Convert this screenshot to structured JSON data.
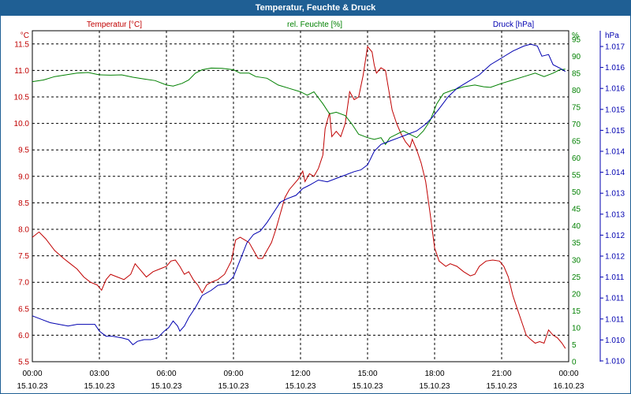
{
  "window": {
    "title": "Temperatur, Feuchte & Druck"
  },
  "chart_data": {
    "type": "line",
    "title": "Temperatur, Feuchte & Druck",
    "grid": true,
    "x_ticks": [
      {
        "time": "00:00",
        "date": "15.10.23"
      },
      {
        "time": "03:00",
        "date": "15.10.23"
      },
      {
        "time": "06:00",
        "date": "15.10.23"
      },
      {
        "time": "09:00",
        "date": "15.10.23"
      },
      {
        "time": "12:00",
        "date": "15.10.23"
      },
      {
        "time": "15:00",
        "date": "15.10.23"
      },
      {
        "time": "18:00",
        "date": "15.10.23"
      },
      {
        "time": "21:00",
        "date": "15.10.23"
      },
      {
        "time": "00:00",
        "date": "16.10.23"
      }
    ],
    "axes": {
      "temperature": {
        "label": "Temperatur [°C]",
        "unit": "°C",
        "range": [
          5.5,
          11.75
        ],
        "ticks": [
          "5.5",
          "6.0",
          "6.5",
          "7.0",
          "7.5",
          "8.0",
          "8.5",
          "9.0",
          "9.5",
          "10.0",
          "10.5",
          "11.0",
          "11.5"
        ],
        "color": "#c00000"
      },
      "humidity": {
        "label": "rel. Feuchte [%]",
        "unit": "%",
        "range": [
          0,
          97.5
        ],
        "ticks": [
          "0",
          "5",
          "10",
          "15",
          "20",
          "25",
          "30",
          "35",
          "40",
          "45",
          "50",
          "55",
          "60",
          "65",
          "70",
          "75",
          "80",
          "85",
          "90",
          "95"
        ],
        "color": "#008000"
      },
      "pressure": {
        "label": "Druck [hPa]",
        "unit": "hPa",
        "tick_labels": [
          "1.010",
          "1.010",
          "1.011",
          "1.011",
          "1.011",
          "1.012",
          "1.012",
          "1.013",
          "1.013",
          "1.014",
          "1.014",
          "1.015",
          "1.015",
          "1.016",
          "1.016",
          "1.017"
        ],
        "color": "#0000b0"
      }
    },
    "series": [
      {
        "name": "Temperatur [°C]",
        "axis": "temperature",
        "color": "#c00000",
        "points": [
          [
            0.0,
            7.85
          ],
          [
            0.3,
            7.95
          ],
          [
            0.6,
            7.82
          ],
          [
            1.0,
            7.6
          ],
          [
            1.4,
            7.45
          ],
          [
            1.7,
            7.35
          ],
          [
            2.0,
            7.25
          ],
          [
            2.3,
            7.1
          ],
          [
            2.6,
            7.0
          ],
          [
            2.9,
            6.95
          ],
          [
            3.1,
            6.85
          ],
          [
            3.3,
            7.05
          ],
          [
            3.5,
            7.15
          ],
          [
            3.8,
            7.1
          ],
          [
            4.1,
            7.05
          ],
          [
            4.4,
            7.15
          ],
          [
            4.6,
            7.35
          ],
          [
            4.8,
            7.25
          ],
          [
            5.1,
            7.1
          ],
          [
            5.4,
            7.2
          ],
          [
            5.7,
            7.25
          ],
          [
            6.0,
            7.3
          ],
          [
            6.2,
            7.4
          ],
          [
            6.4,
            7.42
          ],
          [
            6.6,
            7.3
          ],
          [
            6.8,
            7.15
          ],
          [
            7.0,
            7.2
          ],
          [
            7.2,
            7.05
          ],
          [
            7.4,
            6.95
          ],
          [
            7.6,
            6.8
          ],
          [
            7.8,
            6.95
          ],
          [
            8.0,
            7.0
          ],
          [
            8.3,
            7.05
          ],
          [
            8.6,
            7.15
          ],
          [
            8.9,
            7.4
          ],
          [
            9.1,
            7.8
          ],
          [
            9.3,
            7.85
          ],
          [
            9.5,
            7.8
          ],
          [
            9.7,
            7.75
          ],
          [
            9.9,
            7.6
          ],
          [
            10.1,
            7.45
          ],
          [
            10.3,
            7.45
          ],
          [
            10.5,
            7.6
          ],
          [
            10.7,
            7.75
          ],
          [
            10.9,
            8.0
          ],
          [
            11.1,
            8.3
          ],
          [
            11.3,
            8.6
          ],
          [
            11.5,
            8.75
          ],
          [
            11.7,
            8.85
          ],
          [
            11.9,
            8.95
          ],
          [
            12.1,
            9.1
          ],
          [
            12.2,
            8.9
          ],
          [
            12.4,
            9.05
          ],
          [
            12.6,
            9.0
          ],
          [
            12.8,
            9.15
          ],
          [
            13.0,
            9.4
          ],
          [
            13.1,
            9.9
          ],
          [
            13.3,
            10.2
          ],
          [
            13.4,
            9.75
          ],
          [
            13.6,
            9.85
          ],
          [
            13.8,
            9.75
          ],
          [
            14.0,
            10.0
          ],
          [
            14.2,
            10.6
          ],
          [
            14.4,
            10.45
          ],
          [
            14.6,
            10.5
          ],
          [
            14.8,
            10.9
          ],
          [
            15.0,
            11.45
          ],
          [
            15.2,
            11.35
          ],
          [
            15.3,
            11.1
          ],
          [
            15.4,
            10.95
          ],
          [
            15.6,
            11.05
          ],
          [
            15.8,
            11.0
          ],
          [
            15.9,
            10.75
          ],
          [
            16.1,
            10.25
          ],
          [
            16.3,
            10.0
          ],
          [
            16.5,
            9.8
          ],
          [
            16.7,
            9.65
          ],
          [
            16.9,
            9.55
          ],
          [
            17.0,
            9.7
          ],
          [
            17.2,
            9.5
          ],
          [
            17.4,
            9.25
          ],
          [
            17.6,
            8.9
          ],
          [
            17.8,
            8.3
          ],
          [
            18.0,
            7.65
          ],
          [
            18.2,
            7.4
          ],
          [
            18.5,
            7.3
          ],
          [
            18.7,
            7.35
          ],
          [
            19.0,
            7.3
          ],
          [
            19.3,
            7.2
          ],
          [
            19.6,
            7.12
          ],
          [
            19.8,
            7.15
          ],
          [
            20.0,
            7.3
          ],
          [
            20.3,
            7.4
          ],
          [
            20.6,
            7.42
          ],
          [
            20.9,
            7.4
          ],
          [
            21.1,
            7.3
          ],
          [
            21.3,
            7.1
          ],
          [
            21.5,
            6.75
          ],
          [
            21.7,
            6.5
          ],
          [
            21.9,
            6.25
          ],
          [
            22.1,
            6.0
          ],
          [
            22.3,
            5.92
          ],
          [
            22.5,
            5.85
          ],
          [
            22.7,
            5.88
          ],
          [
            22.9,
            5.85
          ],
          [
            23.1,
            6.1
          ],
          [
            23.3,
            6.0
          ],
          [
            23.5,
            5.95
          ],
          [
            23.7,
            5.85
          ],
          [
            23.85,
            5.75
          ]
        ]
      },
      {
        "name": "rel. Feuchte [%]",
        "axis": "humidity",
        "color": "#008000",
        "points": [
          [
            0.0,
            82.5
          ],
          [
            0.5,
            83.0
          ],
          [
            1.0,
            84.0
          ],
          [
            1.5,
            84.5
          ],
          [
            2.0,
            85.0
          ],
          [
            2.5,
            85.2
          ],
          [
            3.0,
            84.5
          ],
          [
            3.5,
            84.4
          ],
          [
            4.0,
            84.5
          ],
          [
            4.5,
            83.8
          ],
          [
            5.0,
            83.3
          ],
          [
            5.5,
            82.8
          ],
          [
            6.0,
            81.5
          ],
          [
            6.3,
            81.2
          ],
          [
            6.7,
            82.0
          ],
          [
            7.0,
            83.0
          ],
          [
            7.3,
            85.0
          ],
          [
            7.6,
            86.0
          ],
          [
            8.0,
            86.5
          ],
          [
            8.5,
            86.4
          ],
          [
            9.0,
            86.0
          ],
          [
            9.3,
            85.0
          ],
          [
            9.7,
            85.0
          ],
          [
            10.0,
            84.0
          ],
          [
            10.5,
            83.5
          ],
          [
            11.0,
            81.5
          ],
          [
            11.5,
            80.5
          ],
          [
            12.0,
            79.5
          ],
          [
            12.3,
            78.5
          ],
          [
            12.6,
            79.5
          ],
          [
            13.0,
            76.0
          ],
          [
            13.3,
            73.0
          ],
          [
            13.6,
            73.5
          ],
          [
            14.0,
            72.5
          ],
          [
            14.3,
            70.0
          ],
          [
            14.6,
            67.0
          ],
          [
            15.0,
            66.0
          ],
          [
            15.3,
            65.5
          ],
          [
            15.6,
            66.0
          ],
          [
            15.8,
            64.0
          ],
          [
            16.0,
            66.0
          ],
          [
            16.3,
            67.0
          ],
          [
            16.6,
            68.0
          ],
          [
            16.9,
            67.0
          ],
          [
            17.2,
            66.0
          ],
          [
            17.5,
            68.0
          ],
          [
            17.8,
            71.0
          ],
          [
            18.1,
            76.0
          ],
          [
            18.4,
            79.0
          ],
          [
            18.8,
            80.0
          ],
          [
            19.3,
            81.0
          ],
          [
            19.8,
            81.5
          ],
          [
            20.2,
            81.0
          ],
          [
            20.5,
            80.8
          ],
          [
            21.0,
            82.0
          ],
          [
            21.5,
            83.0
          ],
          [
            22.0,
            84.0
          ],
          [
            22.5,
            85.0
          ],
          [
            22.9,
            84.0
          ],
          [
            23.3,
            85.0
          ],
          [
            23.6,
            86.0
          ],
          [
            23.85,
            86.2
          ]
        ]
      },
      {
        "name": "Druck [hPa]",
        "axis": "pressure",
        "color": "#0000b0",
        "points": [
          [
            0.0,
            13.5
          ],
          [
            0.4,
            12.5
          ],
          [
            0.8,
            11.5
          ],
          [
            1.2,
            11.0
          ],
          [
            1.6,
            10.5
          ],
          [
            2.0,
            11.0
          ],
          [
            2.4,
            11.0
          ],
          [
            2.8,
            11.0
          ],
          [
            3.0,
            9.0
          ],
          [
            3.3,
            7.5
          ],
          [
            3.6,
            7.5
          ],
          [
            4.0,
            7.0
          ],
          [
            4.3,
            6.5
          ],
          [
            4.5,
            5.0
          ],
          [
            4.7,
            6.0
          ],
          [
            5.0,
            6.5
          ],
          [
            5.3,
            6.5
          ],
          [
            5.6,
            7.0
          ],
          [
            5.9,
            9.0
          ],
          [
            6.1,
            10.0
          ],
          [
            6.3,
            12.0
          ],
          [
            6.5,
            10.5
          ],
          [
            6.6,
            9.0
          ],
          [
            6.8,
            10.5
          ],
          [
            7.0,
            13.0
          ],
          [
            7.3,
            16.0
          ],
          [
            7.6,
            19.5
          ],
          [
            8.0,
            21.0
          ],
          [
            8.3,
            22.5
          ],
          [
            8.7,
            23.0
          ],
          [
            9.0,
            25.0
          ],
          [
            9.3,
            30.0
          ],
          [
            9.6,
            35.0
          ],
          [
            9.9,
            37.5
          ],
          [
            10.2,
            38.5
          ],
          [
            10.5,
            41.0
          ],
          [
            10.8,
            44.0
          ],
          [
            11.1,
            47.0
          ],
          [
            11.4,
            48.0
          ],
          [
            11.8,
            49.0
          ],
          [
            12.1,
            51.0
          ],
          [
            12.4,
            52.0
          ],
          [
            12.8,
            53.5
          ],
          [
            13.2,
            53.0
          ],
          [
            13.6,
            54.0
          ],
          [
            14.0,
            55.0
          ],
          [
            14.4,
            56.0
          ],
          [
            14.7,
            56.5
          ],
          [
            15.0,
            58.0
          ],
          [
            15.3,
            62.0
          ],
          [
            15.6,
            64.0
          ],
          [
            16.0,
            65.0
          ],
          [
            16.4,
            66.0
          ],
          [
            16.8,
            67.0
          ],
          [
            17.2,
            68.0
          ],
          [
            17.6,
            70.0
          ],
          [
            17.9,
            72.0
          ],
          [
            18.2,
            74.5
          ],
          [
            18.6,
            78.0
          ],
          [
            19.0,
            80.5
          ],
          [
            19.5,
            82.5
          ],
          [
            20.0,
            84.5
          ],
          [
            20.5,
            87.5
          ],
          [
            21.0,
            89.5
          ],
          [
            21.5,
            91.5
          ],
          [
            22.0,
            93.0
          ],
          [
            22.3,
            93.5
          ],
          [
            22.6,
            93.0
          ],
          [
            22.8,
            90.0
          ],
          [
            23.1,
            90.5
          ],
          [
            23.3,
            87.5
          ],
          [
            23.6,
            86.5
          ],
          [
            23.85,
            85.5
          ]
        ]
      }
    ]
  }
}
